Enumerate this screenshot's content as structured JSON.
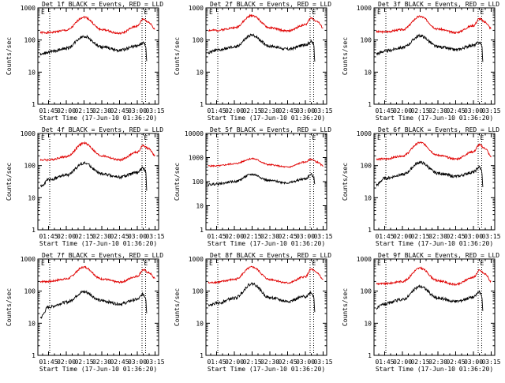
{
  "chart_data": [
    {
      "type": "line",
      "title": "Det 1f BLACK = Events, RED = LLD",
      "xlabel": "Start Time (17-Jun-10 01:36:20)",
      "ylabel": "Counts/sec",
      "yscale": "log",
      "ylim": [
        1,
        1000
      ],
      "yticks": [
        "1",
        "10",
        "100",
        "1000"
      ],
      "xticks": [
        "01:45",
        "02:00",
        "02:15",
        "02:30",
        "02:45",
        "03:00",
        "03:15"
      ],
      "markers": [
        "01:46",
        "03:04",
        "03:07"
      ],
      "marker_labels": [
        {
          "text": "E",
          "at": "01:38"
        },
        {
          "text": "E",
          "at": "03:05"
        }
      ],
      "series": [
        {
          "name": "RED = LLD",
          "color": "#e00000",
          "x": [
            "01:38",
            "01:45",
            "02:00",
            "02:15",
            "02:30",
            "02:45",
            "03:00",
            "03:05",
            "03:10",
            "03:15"
          ],
          "y": [
            170,
            170,
            200,
            520,
            210,
            160,
            270,
            450,
            350,
            220
          ]
        },
        {
          "name": "BLACK = Events",
          "color": "#000000",
          "x": [
            "01:38",
            "01:45",
            "02:00",
            "02:15",
            "02:30",
            "02:45",
            "03:00",
            "03:05",
            "03:07",
            "03:08"
          ],
          "y": [
            35,
            42,
            55,
            130,
            60,
            48,
            65,
            80,
            70,
            20
          ]
        }
      ]
    },
    {
      "type": "line",
      "title": "Det 2f BLACK = Events, RED = LLD",
      "xlabel": "Start Time (17-Jun-10 01:36:20)",
      "ylabel": "Counts/sec",
      "yscale": "log",
      "ylim": [
        1,
        1000
      ],
      "yticks": [
        "1",
        "10",
        "100",
        "1000"
      ],
      "xticks": [
        "01:45",
        "02:00",
        "02:15",
        "02:30",
        "02:45",
        "03:00",
        "03:15"
      ],
      "markers": [
        "01:46",
        "03:04",
        "03:07"
      ],
      "marker_labels": [
        {
          "text": "E",
          "at": "01:38"
        },
        {
          "text": "E",
          "at": "03:05"
        }
      ],
      "series": [
        {
          "name": "RED = LLD",
          "color": "#e00000",
          "x": [
            "01:38",
            "01:45",
            "02:00",
            "02:15",
            "02:30",
            "02:45",
            "03:00",
            "03:05",
            "03:10",
            "03:15"
          ],
          "y": [
            200,
            200,
            240,
            580,
            240,
            190,
            300,
            480,
            380,
            240
          ]
        },
        {
          "name": "BLACK = Events",
          "color": "#000000",
          "x": [
            "01:38",
            "01:45",
            "02:00",
            "02:15",
            "02:30",
            "02:45",
            "03:00",
            "03:05",
            "03:07",
            "03:08"
          ],
          "y": [
            40,
            48,
            60,
            140,
            65,
            52,
            70,
            90,
            75,
            22
          ]
        }
      ]
    },
    {
      "type": "line",
      "title": "Det 3f BLACK = Events, RED = LLD",
      "xlabel": "Start Time (17-Jun-10 01:36:20)",
      "ylabel": "Counts/sec",
      "yscale": "log",
      "ylim": [
        1,
        1000
      ],
      "yticks": [
        "1",
        "10",
        "100",
        "1000"
      ],
      "xticks": [
        "01:45",
        "02:00",
        "02:15",
        "02:30",
        "02:45",
        "03:00",
        "03:15"
      ],
      "markers": [
        "01:46",
        "03:04",
        "03:07"
      ],
      "marker_labels": [
        {
          "text": "E",
          "at": "01:38"
        },
        {
          "text": "E",
          "at": "03:05"
        }
      ],
      "series": [
        {
          "name": "RED = LLD",
          "color": "#e00000",
          "x": [
            "01:38",
            "01:45",
            "02:00",
            "02:15",
            "02:30",
            "02:45",
            "03:00",
            "03:05",
            "03:10",
            "03:15"
          ],
          "y": [
            180,
            180,
            210,
            540,
            220,
            170,
            280,
            460,
            360,
            230
          ]
        },
        {
          "name": "BLACK = Events",
          "color": "#000000",
          "x": [
            "01:38",
            "01:45",
            "02:00",
            "02:15",
            "02:30",
            "02:45",
            "03:00",
            "03:05",
            "03:07",
            "03:08"
          ],
          "y": [
            38,
            45,
            58,
            135,
            62,
            50,
            68,
            85,
            72,
            20
          ]
        }
      ]
    },
    {
      "type": "line",
      "title": "Det 4f BLACK = Events, RED = LLD",
      "xlabel": "Start Time (17-Jun-10 01:36:20)",
      "ylabel": "Counts/sec",
      "yscale": "log",
      "ylim": [
        1,
        1000
      ],
      "yticks": [
        "1",
        "10",
        "100",
        "1000"
      ],
      "xticks": [
        "01:45",
        "02:00",
        "02:15",
        "02:30",
        "02:45",
        "03:00",
        "03:15"
      ],
      "markers": [
        "01:46",
        "03:04",
        "03:07"
      ],
      "marker_labels": [
        {
          "text": "E",
          "at": "01:38"
        },
        {
          "text": "E",
          "at": "03:05"
        }
      ],
      "series": [
        {
          "name": "RED = LLD",
          "color": "#e00000",
          "x": [
            "01:38",
            "01:45",
            "02:00",
            "02:15",
            "02:30",
            "02:45",
            "03:00",
            "03:05",
            "03:10",
            "03:15"
          ],
          "y": [
            150,
            150,
            190,
            500,
            200,
            150,
            260,
            420,
            330,
            200
          ]
        },
        {
          "name": "BLACK = Events",
          "color": "#000000",
          "x": [
            "01:38",
            "01:45",
            "02:00",
            "02:15",
            "02:30",
            "02:45",
            "03:00",
            "03:05",
            "03:07",
            "03:08"
          ],
          "y": [
            22,
            36,
            50,
            120,
            55,
            44,
            60,
            85,
            68,
            18
          ]
        }
      ]
    },
    {
      "type": "line",
      "title": "Det 5f BLACK = Events, RED = LLD",
      "xlabel": "Start Time (17-Jun-10 01:36:20)",
      "ylabel": "Counts/sec",
      "yscale": "log",
      "ylim": [
        1,
        10000
      ],
      "yticks": [
        "1",
        "10",
        "100",
        "1000",
        "10000"
      ],
      "xticks": [
        "01:45",
        "02:00",
        "02:15",
        "02:30",
        "02:45",
        "03:00",
        "03:15"
      ],
      "markers": [
        "01:46",
        "03:04",
        "03:07"
      ],
      "marker_labels": [
        {
          "text": "E",
          "at": "03:05"
        }
      ],
      "series": [
        {
          "name": "RED = LLD",
          "color": "#e00000",
          "x": [
            "01:38",
            "01:45",
            "02:00",
            "02:15",
            "02:30",
            "02:45",
            "03:00",
            "03:05",
            "03:10",
            "03:15"
          ],
          "y": [
            450,
            450,
            550,
            900,
            500,
            400,
            650,
            850,
            650,
            450
          ]
        },
        {
          "name": "BLACK = Events",
          "color": "#000000",
          "x": [
            "01:38",
            "01:45",
            "02:00",
            "02:15",
            "02:30",
            "02:45",
            "03:00",
            "03:05",
            "03:07",
            "03:08"
          ],
          "y": [
            75,
            80,
            100,
            200,
            110,
            90,
            130,
            200,
            150,
            80
          ]
        }
      ]
    },
    {
      "type": "line",
      "title": "Det 6f BLACK = Events, RED = LLD",
      "xlabel": "Start Time (17-Jun-10 01:36:20)",
      "ylabel": "Counts/sec",
      "yscale": "log",
      "ylim": [
        1,
        1000
      ],
      "yticks": [
        "1",
        "10",
        "100",
        "1000"
      ],
      "xticks": [
        "01:45",
        "02:00",
        "02:15",
        "02:30",
        "02:45",
        "03:00",
        "03:15"
      ],
      "markers": [
        "01:46",
        "03:04",
        "03:07"
      ],
      "marker_labels": [
        {
          "text": "E",
          "at": "01:38"
        },
        {
          "text": "E",
          "at": "03:05"
        }
      ],
      "series": [
        {
          "name": "RED = LLD",
          "color": "#e00000",
          "x": [
            "01:38",
            "01:45",
            "02:00",
            "02:15",
            "02:30",
            "02:45",
            "03:00",
            "03:05",
            "03:10",
            "03:15"
          ],
          "y": [
            160,
            160,
            200,
            520,
            210,
            160,
            270,
            440,
            340,
            190
          ]
        },
        {
          "name": "BLACK = Events",
          "color": "#000000",
          "x": [
            "01:38",
            "01:45",
            "02:00",
            "02:15",
            "02:30",
            "02:45",
            "03:00",
            "03:05",
            "03:07",
            "03:08"
          ],
          "y": [
            25,
            40,
            52,
            125,
            58,
            46,
            62,
            90,
            70,
            20
          ]
        }
      ]
    },
    {
      "type": "line",
      "title": "Det 7f BLACK = Events, RED = LLD",
      "xlabel": "Start Time (17-Jun-10 01:36:20)",
      "ylabel": "Counts/sec",
      "yscale": "log",
      "ylim": [
        1,
        1000
      ],
      "yticks": [
        "1",
        "10",
        "100",
        "1000"
      ],
      "xticks": [
        "01:45",
        "02:00",
        "02:15",
        "02:30",
        "02:45",
        "03:00",
        "03:15"
      ],
      "markers": [
        "01:46",
        "03:04",
        "03:07"
      ],
      "marker_labels": [
        {
          "text": "E",
          "at": "01:38"
        },
        {
          "text": "E",
          "at": "03:05"
        }
      ],
      "series": [
        {
          "name": "RED = LLD",
          "color": "#e00000",
          "x": [
            "01:38",
            "01:45",
            "02:00",
            "02:15",
            "02:30",
            "02:45",
            "03:00",
            "03:05",
            "03:10",
            "03:15"
          ],
          "y": [
            200,
            200,
            240,
            560,
            240,
            190,
            290,
            460,
            370,
            250
          ]
        },
        {
          "name": "BLACK = Events",
          "color": "#000000",
          "x": [
            "01:38",
            "01:45",
            "02:00",
            "02:15",
            "02:30",
            "02:45",
            "03:00",
            "03:05",
            "03:07",
            "03:08"
          ],
          "y": [
            15,
            32,
            45,
            95,
            50,
            40,
            55,
            80,
            65,
            22
          ]
        }
      ]
    },
    {
      "type": "line",
      "title": "Det 8f BLACK = Events, RED = LLD",
      "xlabel": "Start Time (17-Jun-10 01:36:20)",
      "ylabel": "Counts/sec",
      "yscale": "log",
      "ylim": [
        1,
        1000
      ],
      "yticks": [
        "1",
        "10",
        "100",
        "1000"
      ],
      "xticks": [
        "01:45",
        "02:00",
        "02:15",
        "02:30",
        "02:45",
        "03:00",
        "03:15"
      ],
      "markers": [
        "01:46",
        "03:04",
        "03:07"
      ],
      "marker_labels": [
        {
          "text": "E",
          "at": "01:38"
        },
        {
          "text": "E",
          "at": "03:05"
        }
      ],
      "series": [
        {
          "name": "RED = LLD",
          "color": "#e00000",
          "x": [
            "01:38",
            "01:45",
            "02:00",
            "02:15",
            "02:30",
            "02:45",
            "03:00",
            "03:05",
            "03:10",
            "03:15"
          ],
          "y": [
            180,
            190,
            230,
            560,
            230,
            180,
            280,
            480,
            370,
            230
          ]
        },
        {
          "name": "BLACK = Events",
          "color": "#000000",
          "x": [
            "01:38",
            "01:45",
            "02:00",
            "02:15",
            "02:30",
            "02:45",
            "03:00",
            "03:05",
            "03:07",
            "03:08"
          ],
          "y": [
            35,
            42,
            60,
            170,
            62,
            48,
            68,
            90,
            70,
            22
          ]
        }
      ]
    },
    {
      "type": "line",
      "title": "Det 9f BLACK = Events, RED = LLD",
      "xlabel": "Start Time (17-Jun-10 01:36:20)",
      "ylabel": "Counts/sec",
      "yscale": "log",
      "ylim": [
        1,
        1000
      ],
      "yticks": [
        "1",
        "10",
        "100",
        "1000"
      ],
      "xticks": [
        "01:45",
        "02:00",
        "02:15",
        "02:30",
        "02:45",
        "03:00",
        "03:15"
      ],
      "markers": [
        "01:46",
        "03:04",
        "03:07"
      ],
      "marker_labels": [
        {
          "text": "E",
          "at": "01:38"
        },
        {
          "text": "E",
          "at": "03:05"
        }
      ],
      "series": [
        {
          "name": "RED = LLD",
          "color": "#e00000",
          "x": [
            "01:38",
            "01:45",
            "02:00",
            "02:15",
            "02:30",
            "02:45",
            "03:00",
            "03:05",
            "03:10",
            "03:15"
          ],
          "y": [
            170,
            170,
            200,
            520,
            210,
            160,
            270,
            440,
            340,
            200
          ]
        },
        {
          "name": "BLACK = Events",
          "color": "#000000",
          "x": [
            "01:38",
            "01:45",
            "02:00",
            "02:15",
            "02:30",
            "02:45",
            "03:00",
            "03:05",
            "03:07",
            "03:08"
          ],
          "y": [
            30,
            40,
            55,
            140,
            60,
            48,
            65,
            95,
            72,
            22
          ]
        }
      ]
    }
  ]
}
